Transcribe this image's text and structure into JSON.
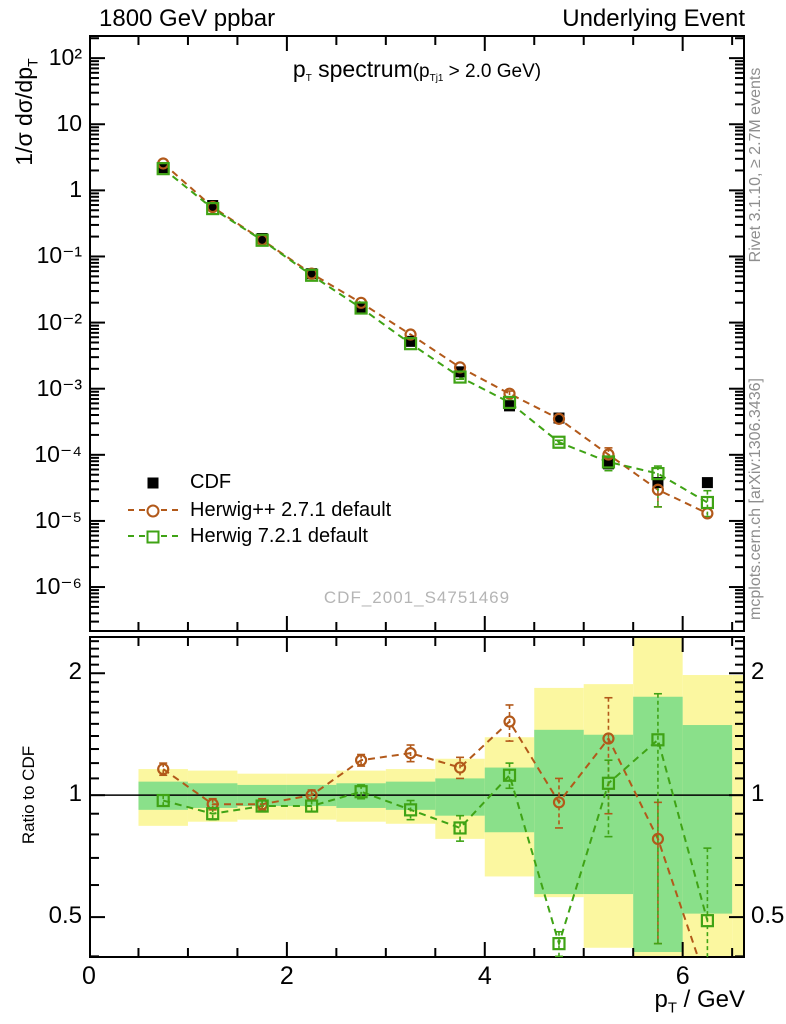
{
  "header": {
    "left": "1800 GeV ppbar",
    "right": "Underlying Event"
  },
  "side_notes": {
    "top": "Rivet 3.1.10, ≥ 2.7M events",
    "bottom": "mcplots.cern.ch [arXiv:1306.3436]"
  },
  "watermark": "CDF_2001_S4751469",
  "labels": {
    "y_pre": "1/σ dσ/dp",
    "y_sub": "T",
    "x_pre": "p",
    "x_sub": "T",
    "x_post": " / GeV",
    "ratio": "Ratio to CDF",
    "title_p": "p",
    "title_p_sub": "T",
    "title_main": " spectrum",
    "title_cond_open": "(p",
    "title_cond_sub": "Tj1",
    "title_cond_close": " > 2.0 GeV)"
  },
  "legend": [
    {
      "label": "CDF",
      "marker": "filled-square",
      "color": "#000000"
    },
    {
      "label": "Herwig++ 2.7.1 default",
      "marker": "open-circle",
      "color": "#b2591a"
    },
    {
      "label": "Herwig 7.2.1 default",
      "marker": "open-square",
      "color": "#3fa315"
    }
  ],
  "chart_data": {
    "type": "line",
    "title": "pT spectrum (pTj1 > 2.0 GeV)",
    "xlabel": "pT / GeV",
    "ylabel": "1/σ dσ/dpT",
    "ratio_ylabel": "Ratio to CDF",
    "x": [
      0.75,
      1.25,
      1.75,
      2.25,
      2.75,
      3.25,
      3.75,
      4.25,
      4.75,
      5.25,
      5.75,
      6.25
    ],
    "series": [
      {
        "name": "CDF",
        "color": "#000000",
        "marker": "filled-square",
        "line": "none",
        "values": [
          2.2,
          0.59,
          0.187,
          0.055,
          0.0163,
          0.0052,
          0.0018,
          0.00055,
          0.00036,
          7.3e-05,
          3.8e-05,
          3.8e-05
        ]
      },
      {
        "name": "Herwig++ 2.7.1 default",
        "color": "#b2591a",
        "marker": "open-circle",
        "line": "dashed",
        "values": [
          2.55,
          0.56,
          0.178,
          0.055,
          0.0199,
          0.0066,
          0.0021,
          0.00084,
          0.00035,
          0.000101,
          2.96e-05,
          1.3e-05
        ],
        "ratio": [
          1.16,
          0.95,
          0.95,
          1.0,
          1.22,
          1.27,
          1.17,
          1.52,
          0.96,
          1.38,
          0.78,
          0.34
        ],
        "ratio_err_lo": [
          1.12,
          0.92,
          0.92,
          0.97,
          1.18,
          1.21,
          1.1,
          1.36,
          0.83,
          0.9,
          0.43,
          0.34
        ],
        "ratio_err_hi": [
          1.2,
          0.98,
          0.98,
          1.03,
          1.26,
          1.33,
          1.24,
          1.67,
          1.1,
          1.74,
          0.96,
          0.34
        ]
      },
      {
        "name": "Herwig 7.2.1 default",
        "color": "#3fa315",
        "marker": "open-square",
        "line": "dashed",
        "values": [
          2.13,
          0.53,
          0.176,
          0.052,
          0.0166,
          0.0048,
          0.0015,
          0.00062,
          0.000155,
          7.8e-05,
          5.2e-05,
          1.9e-05
        ],
        "ratio": [
          0.97,
          0.9,
          0.94,
          0.94,
          1.02,
          0.92,
          0.83,
          1.12,
          0.43,
          1.07,
          1.37,
          0.49
        ],
        "ratio_err_lo": [
          0.94,
          0.87,
          0.91,
          0.91,
          0.98,
          0.87,
          0.77,
          1.04,
          0.4,
          0.79,
          0.43,
          0.3
        ],
        "ratio_err_hi": [
          1.0,
          0.93,
          0.97,
          0.97,
          1.06,
          0.97,
          0.89,
          1.2,
          0.46,
          1.22,
          1.78,
          0.74
        ]
      }
    ],
    "main_axis": {
      "x_range": [
        0,
        6.63
      ],
      "y_log_range": [
        -6.68,
        2.35
      ],
      "ticks": [
        {
          "v": 100,
          "label": "10²"
        },
        {
          "v": 10,
          "label": "10"
        },
        {
          "v": 1,
          "label": "1"
        },
        {
          "v": 0.1,
          "label": "10⁻¹"
        },
        {
          "v": 0.01,
          "label": "10⁻²"
        },
        {
          "v": 0.001,
          "label": "10⁻³"
        },
        {
          "v": 0.0001,
          "label": "10⁻⁴"
        },
        {
          "v": 1e-05,
          "label": "10⁻⁵"
        },
        {
          "v": 1e-06,
          "label": "10⁻⁶"
        }
      ]
    },
    "ratio_axis": {
      "log_range": [
        -0.402,
        0.393
      ],
      "ticks": [
        {
          "v": 2,
          "label": "2"
        },
        {
          "v": 1,
          "label": "1"
        },
        {
          "v": 0.5,
          "label": "0.5"
        }
      ]
    },
    "x_axis": {
      "major_ticks": [
        0,
        2,
        4,
        6
      ],
      "minor_step": 0.5
    },
    "bands": {
      "color_outer": "#fbf7a0",
      "color_inner": "#8ae08a",
      "bin_edges": [
        0.5,
        1.0,
        1.5,
        2.0,
        2.5,
        3.0,
        3.5,
        4.0,
        4.5,
        5.0,
        5.5,
        6.0,
        6.5,
        6.63
      ],
      "outer": [
        [
          0.84,
          1.16
        ],
        [
          0.86,
          1.15
        ],
        [
          0.87,
          1.13
        ],
        [
          0.87,
          1.13
        ],
        [
          0.86,
          1.15
        ],
        [
          0.85,
          1.16
        ],
        [
          0.78,
          1.23
        ],
        [
          0.63,
          1.39
        ],
        [
          0.56,
          1.84
        ],
        [
          0.42,
          1.88
        ],
        [
          0.39,
          2.46
        ],
        [
          0.4,
          1.98
        ],
        [
          0.4,
          1.98
        ]
      ],
      "inner": [
        [
          0.92,
          1.08
        ],
        [
          0.93,
          1.07
        ],
        [
          0.94,
          1.06
        ],
        [
          0.94,
          1.06
        ],
        [
          0.93,
          1.07
        ],
        [
          0.92,
          1.08
        ],
        [
          0.89,
          1.1
        ],
        [
          0.81,
          1.17
        ],
        [
          0.57,
          1.45
        ],
        [
          0.57,
          1.41
        ],
        [
          0.41,
          1.75
        ],
        [
          0.51,
          1.49
        ],
        null
      ]
    }
  }
}
